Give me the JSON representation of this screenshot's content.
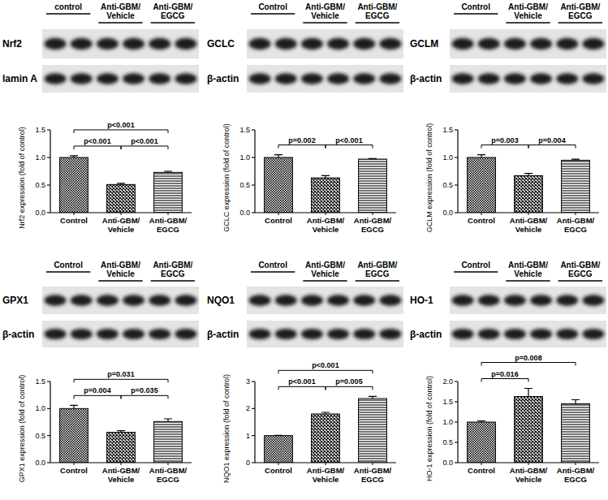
{
  "chart_data": [
    {
      "type": "bar",
      "blot": {
        "lanes": [
          "control",
          "Anti-GBM/\nVehicle",
          "Anti-GBM/\nEGCG"
        ],
        "proteins": [
          "Nrf2",
          "lamin A"
        ]
      },
      "categories": [
        "Control",
        "Anti-GBM/\nVehicle",
        "Anti-GBM/\nEGCG"
      ],
      "values": [
        1.0,
        0.51,
        0.73
      ],
      "errors": [
        0.03,
        0.02,
        0.02
      ],
      "color": "#000000",
      "y_label": "Nrf2 expression (fold of control)",
      "ylim": [
        0,
        1.5
      ],
      "yticks": [
        {
          "value": 0,
          "label": "0.0"
        },
        {
          "value": 0.5,
          "label": "0.5"
        },
        {
          "value": 1,
          "label": "1.0"
        },
        {
          "value": 1.5,
          "label": "1.5"
        }
      ],
      "annotations": [
        {
          "text": "p<0.001",
          "from": 0,
          "to": 1
        },
        {
          "text": "p<0.001",
          "from": 1,
          "to": 2
        },
        {
          "text": "p<0.001",
          "from": 0,
          "to": 2
        }
      ]
    },
    {
      "type": "bar",
      "blot": {
        "lanes": [
          "Control",
          "Anti-GBM/\nVehicle",
          "Anti-GBM/\nEGCG"
        ],
        "proteins": [
          "GCLC",
          "β-actin"
        ]
      },
      "categories": [
        "Control",
        "Anti-GBM/\nVehicle",
        "Anti-GBM/\nEGCG"
      ],
      "values": [
        1.0,
        0.63,
        0.97
      ],
      "errors": [
        0.05,
        0.04,
        0.01
      ],
      "color": "#000000",
      "y_label": "GCLC expression (fold of control)",
      "ylim": [
        0,
        1.5
      ],
      "yticks": [
        {
          "value": 0,
          "label": "0.0"
        },
        {
          "value": 0.5,
          "label": "0.5"
        },
        {
          "value": 1,
          "label": "1.0"
        },
        {
          "value": 1.5,
          "label": "1.5"
        }
      ],
      "annotations": [
        {
          "text": "p=0.002",
          "from": 0,
          "to": 1
        },
        {
          "text": "p<0.001",
          "from": 1,
          "to": 2
        }
      ]
    },
    {
      "type": "bar",
      "blot": {
        "lanes": [
          "Control",
          "Anti-GBM/\nVehicle",
          "Anti-GBM/\nEGCG"
        ],
        "proteins": [
          "GCLM",
          "β-actin"
        ]
      },
      "categories": [
        "Control",
        "Anti-GBM/\nVehicle",
        "Anti-GBM/\nEGCG"
      ],
      "values": [
        1.0,
        0.67,
        0.95
      ],
      "errors": [
        0.05,
        0.04,
        0.02
      ],
      "color": "#000000",
      "y_label": "GCLM expression (fold of control)",
      "ylim": [
        0,
        1.5
      ],
      "yticks": [
        {
          "value": 0,
          "label": "0.0"
        },
        {
          "value": 0.5,
          "label": "0.5"
        },
        {
          "value": 1,
          "label": "1.0"
        },
        {
          "value": 1.5,
          "label": "1.5"
        }
      ],
      "annotations": [
        {
          "text": "p=0.003",
          "from": 0,
          "to": 1
        },
        {
          "text": "p=0.004",
          "from": 1,
          "to": 2
        }
      ]
    },
    {
      "type": "bar",
      "blot": {
        "lanes": [
          "Control",
          "Anti-GBM/\nVehicle",
          "Anti-GBM/\nEGCG"
        ],
        "proteins": [
          "GPX1",
          "β-actin"
        ]
      },
      "categories": [
        "Control",
        "Anti-GBM/\nVehicle",
        "Anti-GBM/\nEGCG"
      ],
      "values": [
        1.0,
        0.56,
        0.76
      ],
      "errors": [
        0.06,
        0.03,
        0.05
      ],
      "color": "#000000",
      "y_label": "GPX1 expression (fold of control)",
      "ylim": [
        0,
        1.5
      ],
      "yticks": [
        {
          "value": 0,
          "label": "0.0"
        },
        {
          "value": 0.5,
          "label": "0.5"
        },
        {
          "value": 1,
          "label": "1.0"
        },
        {
          "value": 1.5,
          "label": "1.5"
        }
      ],
      "annotations": [
        {
          "text": "p=0.004",
          "from": 0,
          "to": 1
        },
        {
          "text": "p=0.035",
          "from": 1,
          "to": 2
        },
        {
          "text": "p=0.031",
          "from": 0,
          "to": 2
        }
      ]
    },
    {
      "type": "bar",
      "blot": {
        "lanes": [
          "Control",
          "Anti-GBM/\nVehicle",
          "Anti-GBM/\nEGCG"
        ],
        "proteins": [
          "NQO1",
          "β-actin"
        ]
      },
      "categories": [
        "Control",
        "Anti-GBM/\nVehicle",
        "Anti-GBM/\nEGCG"
      ],
      "values": [
        1.0,
        1.8,
        2.37
      ],
      "errors": [
        0.01,
        0.06,
        0.08
      ],
      "color": "#000000",
      "y_label": "NQO1 expression (fold of control)",
      "ylim": [
        0,
        3
      ],
      "yticks": [
        0,
        1,
        2,
        3
      ],
      "annotations": [
        {
          "text": "p<0.001",
          "from": 0,
          "to": 1
        },
        {
          "text": "p=0.005",
          "from": 1,
          "to": 2
        },
        {
          "text": "p<0.001",
          "from": 0,
          "to": 2
        }
      ]
    },
    {
      "type": "bar",
      "blot": {
        "lanes": [
          "Control",
          "Anti-GBM/\nVehicle",
          "Anti-GBM/\nEGCG"
        ],
        "proteins": [
          "HO-1",
          "β-actin"
        ]
      },
      "categories": [
        "Control",
        "Anti-GBM/\nVehicle",
        "Anti-GBM/\nEGCG"
      ],
      "values": [
        1.0,
        1.63,
        1.45
      ],
      "errors": [
        0.03,
        0.2,
        0.1
      ],
      "color": "#000000",
      "y_label": "HO-1 expression (fold of control)",
      "ylim": [
        0,
        2
      ],
      "yticks": [
        {
          "value": 0,
          "label": "0.0"
        },
        {
          "value": 0.5,
          "label": "0.5"
        },
        {
          "value": 1,
          "label": "1.0"
        },
        {
          "value": 1.5,
          "label": "1.5"
        },
        {
          "value": 2,
          "label": "2.0"
        }
      ],
      "annotations": [
        {
          "text": "p=0.016",
          "from": 0,
          "to": 1
        },
        {
          "text": "p=0.008",
          "from": 0,
          "to": 2
        }
      ]
    }
  ]
}
